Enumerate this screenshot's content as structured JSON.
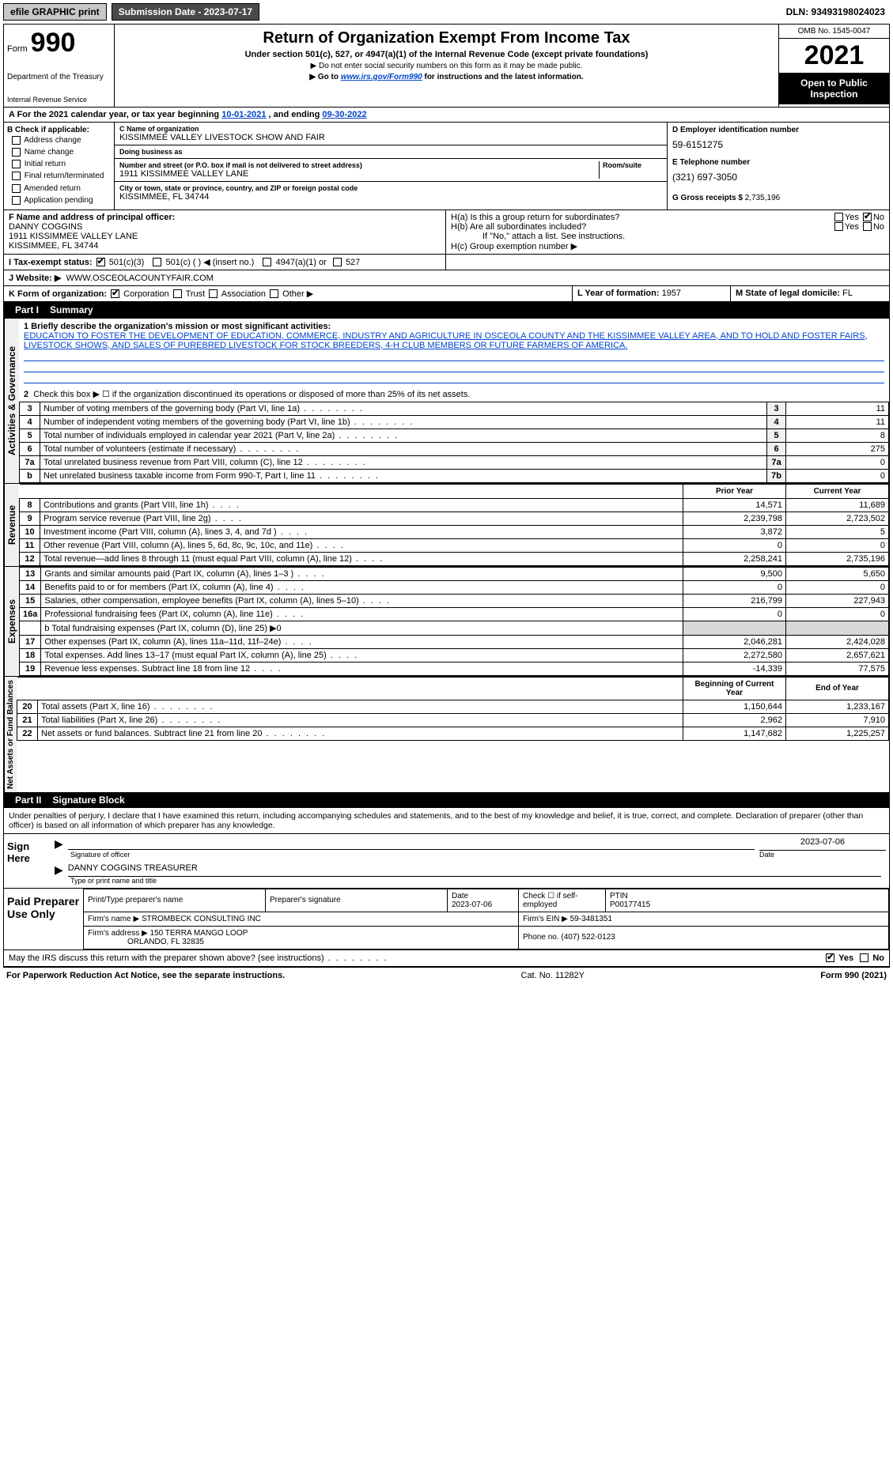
{
  "topbar": {
    "efile": "efile GRAPHIC print",
    "submission": "Submission Date - 2023-07-17",
    "dln": "DLN: 93493198024023"
  },
  "header": {
    "form_label": "Form",
    "form_number": "990",
    "title": "Return of Organization Exempt From Income Tax",
    "subtitle": "Under section 501(c), 527, or 4947(a)(1) of the Internal Revenue Code (except private foundations)",
    "note1": "▶ Do not enter social security numbers on this form as it may be made public.",
    "note2_pre": "▶ Go to ",
    "note2_link": "www.irs.gov/Form990",
    "note2_post": " for instructions and the latest information.",
    "dept": "Department of the Treasury",
    "irs": "Internal Revenue Service",
    "omb": "OMB No. 1545-0047",
    "year": "2021",
    "open": "Open to Public Inspection"
  },
  "a": {
    "text_pre": "A For the 2021 calendar year, or tax year beginning ",
    "begin": "10-01-2021",
    "mid": " , and ending ",
    "end": "09-30-2022"
  },
  "b": {
    "header": "B Check if applicable:",
    "opts": [
      "Address change",
      "Name change",
      "Initial return",
      "Final return/terminated",
      "Amended return",
      "Application pending"
    ]
  },
  "c": {
    "name_lbl": "C Name of organization",
    "name": "KISSIMMEE VALLEY LIVESTOCK SHOW AND FAIR",
    "dba_lbl": "Doing business as",
    "dba": "",
    "street_lbl": "Number and street (or P.O. box if mail is not delivered to street address)",
    "room_lbl": "Room/suite",
    "street": "1911 KISSIMMEE VALLEY LANE",
    "city_lbl": "City or town, state or province, country, and ZIP or foreign postal code",
    "city": "KISSIMMEE, FL  34744"
  },
  "d": {
    "lbl": "D Employer identification number",
    "val": "59-6151275"
  },
  "e": {
    "lbl": "E Telephone number",
    "val": "(321) 697-3050"
  },
  "g": {
    "lbl": "G Gross receipts $",
    "val": "2,735,196"
  },
  "f": {
    "lbl": "F Name and address of principal officer:",
    "name": "DANNY COGGINS",
    "addr1": "1911 KISSIMMEE VALLEY LANE",
    "addr2": "KISSIMMEE, FL  34744"
  },
  "h": {
    "a": "H(a)  Is this a group return for subordinates?",
    "a_yes": "Yes",
    "a_no": "No",
    "b": "H(b)  Are all subordinates included?",
    "b_yes": "Yes",
    "b_no": "No",
    "b_note": "If \"No,\" attach a list. See instructions.",
    "c": "H(c)  Group exemption number ▶"
  },
  "i": {
    "lbl": "I  Tax-exempt status:",
    "o1": "501(c)(3)",
    "o2": "501(c) (   ) ◀ (insert no.)",
    "o3": "4947(a)(1) or",
    "o4": "527"
  },
  "j": {
    "lbl": "J  Website: ▶",
    "val": "WWW.OSCEOLACOUNTYFAIR.COM"
  },
  "k": {
    "lbl": "K Form of organization:",
    "o1": "Corporation",
    "o2": "Trust",
    "o3": "Association",
    "o4": "Other ▶"
  },
  "l": {
    "lbl": "L Year of formation:",
    "val": "1957"
  },
  "m": {
    "lbl": "M State of legal domicile:",
    "val": "FL"
  },
  "part1": {
    "num": "Part I",
    "title": "Summary"
  },
  "mission": {
    "lbl": "1  Briefly describe the organization's mission or most significant activities:",
    "txt": "EDUCATION TO FOSTER THE DEVELOPMENT OF EDUCATION, COMMERCE, INDUSTRY AND AGRICULTURE IN OSCEOLA COUNTY AND THE KISSIMMEE VALLEY AREA, AND TO HOLD AND FOSTER FAIRS, LIVESTOCK SHOWS, AND SALES OF PUREBRED LIVESTOCK FOR STOCK BREEDERS, 4-H CLUB MEMBERS OR FUTURE FARMERS OF AMERICA."
  },
  "gov": {
    "heading": "Activities & Governance",
    "l2": "Check this box ▶ ☐ if the organization discontinued its operations or disposed of more than 25% of its net assets.",
    "rows": [
      {
        "n": "3",
        "d": "Number of voting members of the governing body (Part VI, line 1a)",
        "k": "3",
        "v": "11"
      },
      {
        "n": "4",
        "d": "Number of independent voting members of the governing body (Part VI, line 1b)",
        "k": "4",
        "v": "11"
      },
      {
        "n": "5",
        "d": "Total number of individuals employed in calendar year 2021 (Part V, line 2a)",
        "k": "5",
        "v": "8"
      },
      {
        "n": "6",
        "d": "Total number of volunteers (estimate if necessary)",
        "k": "6",
        "v": "275"
      },
      {
        "n": "7a",
        "d": "Total unrelated business revenue from Part VIII, column (C), line 12",
        "k": "7a",
        "v": "0"
      },
      {
        "n": "b",
        "d": "Net unrelated business taxable income from Form 990-T, Part I, line 11",
        "k": "7b",
        "v": "0"
      }
    ]
  },
  "rev": {
    "heading": "Revenue",
    "col_prior": "Prior Year",
    "col_current": "Current Year",
    "rows": [
      {
        "n": "8",
        "d": "Contributions and grants (Part VIII, line 1h)",
        "p": "14,571",
        "c": "11,689"
      },
      {
        "n": "9",
        "d": "Program service revenue (Part VIII, line 2g)",
        "p": "2,239,798",
        "c": "2,723,502"
      },
      {
        "n": "10",
        "d": "Investment income (Part VIII, column (A), lines 3, 4, and 7d )",
        "p": "3,872",
        "c": "5"
      },
      {
        "n": "11",
        "d": "Other revenue (Part VIII, column (A), lines 5, 6d, 8c, 9c, 10c, and 11e)",
        "p": "0",
        "c": "0"
      },
      {
        "n": "12",
        "d": "Total revenue—add lines 8 through 11 (must equal Part VIII, column (A), line 12)",
        "p": "2,258,241",
        "c": "2,735,196"
      }
    ]
  },
  "exp": {
    "heading": "Expenses",
    "rows": [
      {
        "n": "13",
        "d": "Grants and similar amounts paid (Part IX, column (A), lines 1–3 )",
        "p": "9,500",
        "c": "5,650"
      },
      {
        "n": "14",
        "d": "Benefits paid to or for members (Part IX, column (A), line 4)",
        "p": "0",
        "c": "0"
      },
      {
        "n": "15",
        "d": "Salaries, other compensation, employee benefits (Part IX, column (A), lines 5–10)",
        "p": "216,799",
        "c": "227,943"
      },
      {
        "n": "16a",
        "d": "Professional fundraising fees (Part IX, column (A), line 11e)",
        "p": "0",
        "c": "0"
      }
    ],
    "l16b": "b  Total fundraising expenses (Part IX, column (D), line 25) ▶0",
    "rows2": [
      {
        "n": "17",
        "d": "Other expenses (Part IX, column (A), lines 11a–11d, 11f–24e)",
        "p": "2,046,281",
        "c": "2,424,028"
      },
      {
        "n": "18",
        "d": "Total expenses. Add lines 13–17 (must equal Part IX, column (A), line 25)",
        "p": "2,272,580",
        "c": "2,657,621"
      },
      {
        "n": "19",
        "d": "Revenue less expenses. Subtract line 18 from line 12",
        "p": "-14,339",
        "c": "77,575"
      }
    ]
  },
  "net": {
    "heading": "Net Assets or Fund Balances",
    "col_begin": "Beginning of Current Year",
    "col_end": "End of Year",
    "rows": [
      {
        "n": "20",
        "d": "Total assets (Part X, line 16)",
        "p": "1,150,644",
        "c": "1,233,167"
      },
      {
        "n": "21",
        "d": "Total liabilities (Part X, line 26)",
        "p": "2,962",
        "c": "7,910"
      },
      {
        "n": "22",
        "d": "Net assets or fund balances. Subtract line 21 from line 20",
        "p": "1,147,682",
        "c": "1,225,257"
      }
    ]
  },
  "part2": {
    "num": "Part II",
    "title": "Signature Block"
  },
  "penalty": "Under penalties of perjury, I declare that I have examined this return, including accompanying schedules and statements, and to the best of my knowledge and belief, it is true, correct, and complete. Declaration of preparer (other than officer) is based on all information of which preparer has any knowledge.",
  "sign": {
    "here": "Sign Here",
    "sig_lbl": "Signature of officer",
    "date_lbl": "Date",
    "date": "2023-07-06",
    "name": "DANNY COGGINS  TREASURER",
    "name_lbl": "Type or print name and title"
  },
  "paid": {
    "header": "Paid Preparer Use Only",
    "prep_name_lbl": "Print/Type preparer's name",
    "prep_sig_lbl": "Preparer's signature",
    "date_lbl": "Date",
    "date": "2023-07-06",
    "check_lbl": "Check ☐ if self-employed",
    "ptin_lbl": "PTIN",
    "ptin": "P00177415",
    "firm_lbl": "Firm's name   ▶",
    "firm": "STROMBECK CONSULTING INC",
    "ein_lbl": "Firm's EIN ▶",
    "ein": "59-3481351",
    "addr_lbl": "Firm's address ▶",
    "addr1": "150 TERRA MANGO LOOP",
    "addr2": "ORLANDO, FL  32835",
    "phone_lbl": "Phone no.",
    "phone": "(407) 522-0123"
  },
  "discuss": {
    "q": "May the IRS discuss this return with the preparer shown above? (see instructions)",
    "yes": "Yes",
    "no": "No"
  },
  "footer": {
    "left": "For Paperwork Reduction Act Notice, see the separate instructions.",
    "mid": "Cat. No. 11282Y",
    "right": "Form 990 (2021)"
  }
}
